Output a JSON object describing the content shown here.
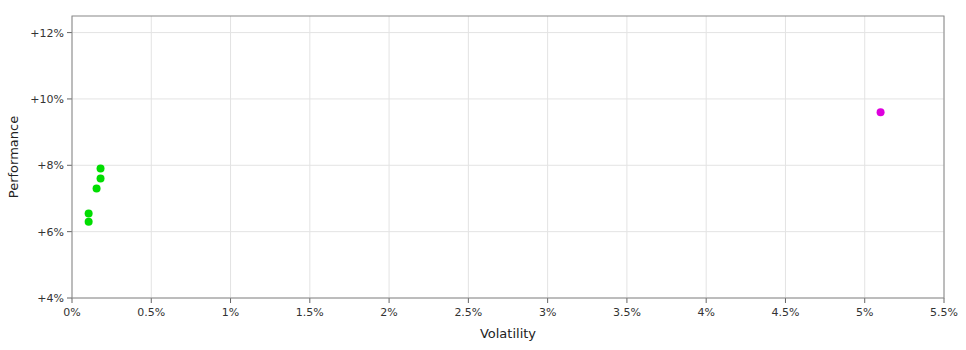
{
  "chart_data": {
    "type": "scatter",
    "xlabel": "Volatility",
    "ylabel": "Performance",
    "xlim": [
      0,
      0.055
    ],
    "ylim": [
      0.04,
      0.125
    ],
    "xticks": [
      {
        "value": 0,
        "label": "0%"
      },
      {
        "value": 0.005,
        "label": "0.5%"
      },
      {
        "value": 0.01,
        "label": "1%"
      },
      {
        "value": 0.015,
        "label": "1.5%"
      },
      {
        "value": 0.02,
        "label": "2%"
      },
      {
        "value": 0.025,
        "label": "2.5%"
      },
      {
        "value": 0.03,
        "label": "3%"
      },
      {
        "value": 0.035,
        "label": "3.5%"
      },
      {
        "value": 0.04,
        "label": "4%"
      },
      {
        "value": 0.045,
        "label": "4.5%"
      },
      {
        "value": 0.05,
        "label": "5%"
      },
      {
        "value": 0.055,
        "label": "5.5%"
      }
    ],
    "yticks": [
      {
        "value": 0.04,
        "label": "+4%"
      },
      {
        "value": 0.06,
        "label": "+6%"
      },
      {
        "value": 0.08,
        "label": "+8%"
      },
      {
        "value": 0.1,
        "label": "+10%"
      },
      {
        "value": 0.12,
        "label": "+12%"
      }
    ],
    "grid": true,
    "series": [
      {
        "color": "#00dd00",
        "x": [
          0.0018,
          0.0018,
          0.00155,
          0.00105,
          0.00105
        ],
        "values": [
          0.079,
          0.076,
          0.073,
          0.0655,
          0.063
        ]
      },
      {
        "color": "#dd00dd",
        "x": [
          0.051
        ],
        "values": [
          0.096
        ]
      }
    ]
  }
}
